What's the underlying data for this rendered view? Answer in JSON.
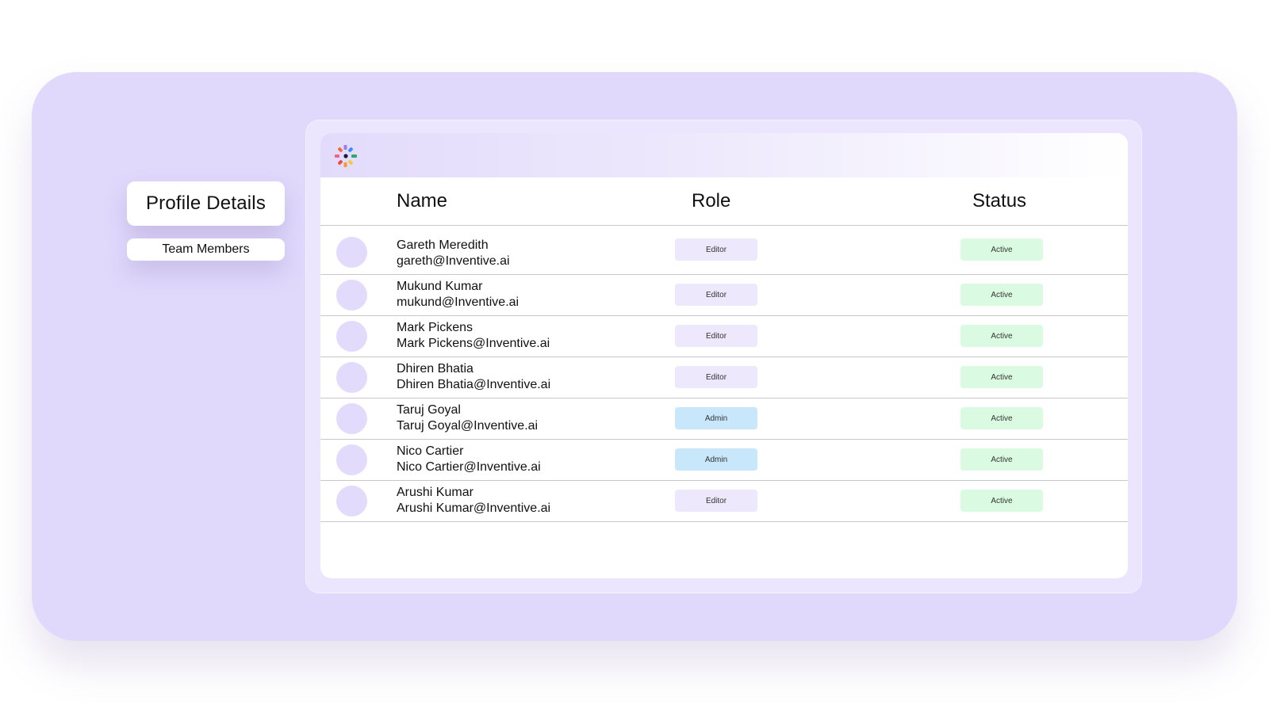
{
  "nav": {
    "profile_details": "Profile Details",
    "team_members": "Team Members"
  },
  "header": {
    "logo": "pinwheel-logo-icon"
  },
  "table": {
    "columns": {
      "name": "Name",
      "role": "Role",
      "status": "Status"
    },
    "rows": [
      {
        "name": "Gareth Meredith",
        "email": "gareth@Inventive.ai",
        "role": "Editor",
        "status": "Active"
      },
      {
        "name": "Mukund Kumar",
        "email": "mukund@Inventive.ai",
        "role": "Editor",
        "status": "Active"
      },
      {
        "name": "Mark Pickens",
        "email": "Mark Pickens@Inventive.ai",
        "role": "Editor",
        "status": "Active"
      },
      {
        "name": "Dhiren Bhatia",
        "email": "Dhiren Bhatia@Inventive.ai",
        "role": "Editor",
        "status": "Active"
      },
      {
        "name": "Taruj Goyal",
        "email": "Taruj Goyal@Inventive.ai",
        "role": "Admin",
        "status": "Active"
      },
      {
        "name": "Nico Cartier",
        "email": "Nico Cartier@Inventive.ai",
        "role": "Admin",
        "status": "Active"
      },
      {
        "name": "Arushi Kumar",
        "email": "Arushi Kumar@Inventive.ai",
        "role": "Editor",
        "status": "Active"
      }
    ]
  },
  "colors": {
    "outer_background": "#e1d9fc",
    "avatar": "#e3dbfb",
    "editor_badge": "#ede8fc",
    "admin_badge": "#c8e7fb",
    "active_badge": "#dafbe2"
  }
}
